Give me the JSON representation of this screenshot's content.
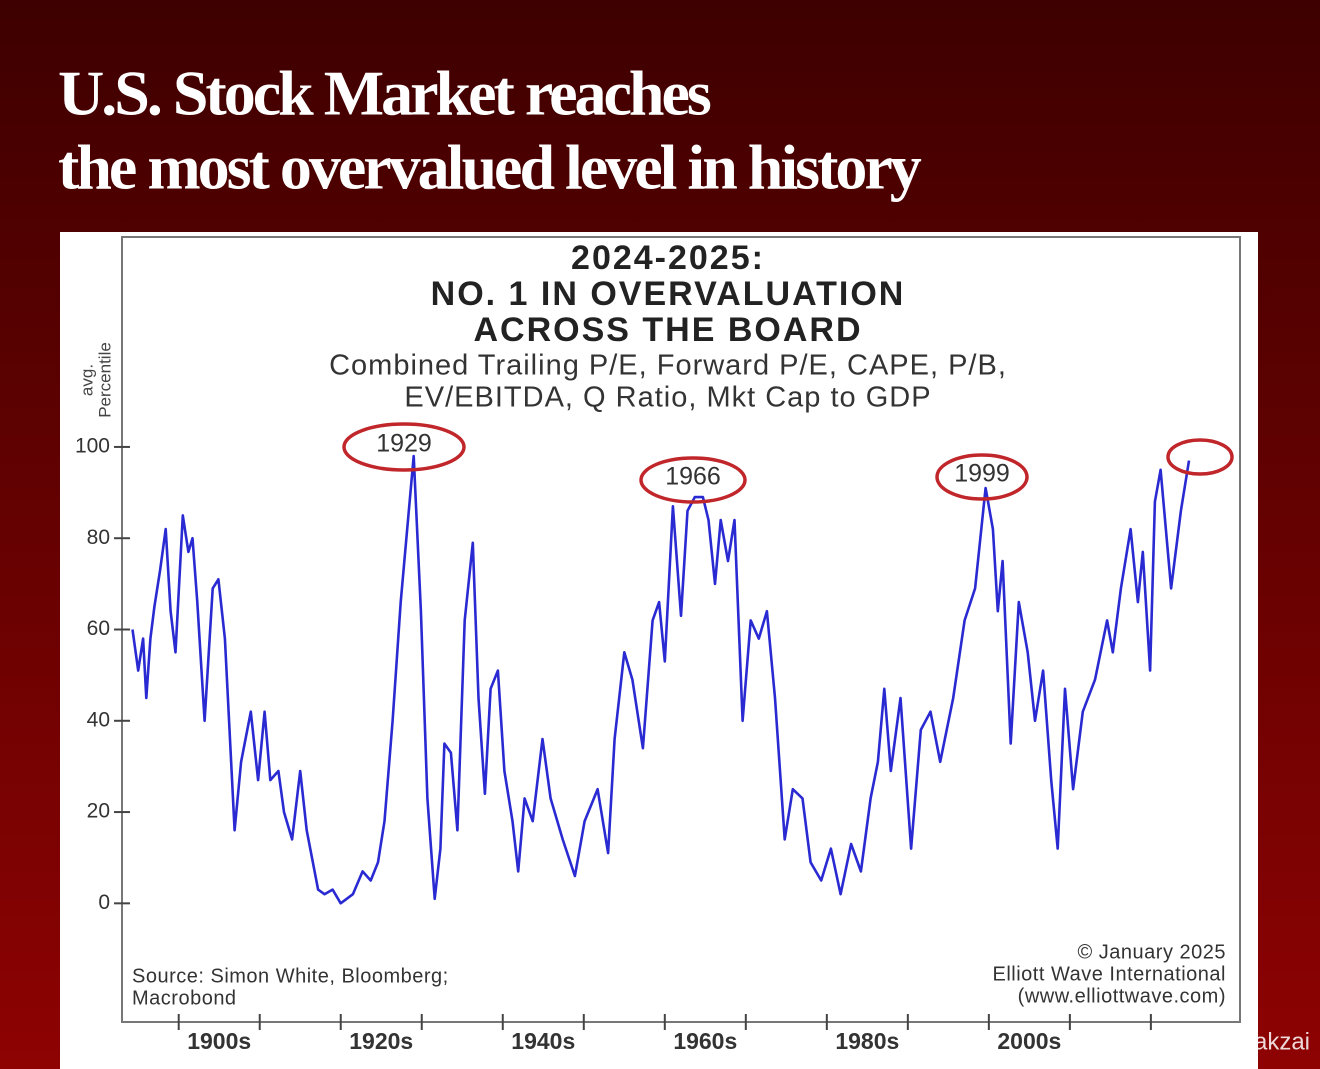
{
  "header": {
    "title": [
      "U.S. Stock Market reaches",
      "the most overvalued level in history"
    ]
  },
  "chart_data": {
    "type": "line",
    "title": [
      "2024-2025:",
      "NO. 1 IN OVERVALUATION",
      "ACROSS THE BOARD"
    ],
    "subtitle": [
      "Combined Trailing P/E, Forward P/E, CAPE, P/B,",
      "EV/EBITDA, Q Ratio, Mkt Cap to GDP"
    ],
    "y_label": [
      "avg.",
      "Percentile"
    ],
    "source": [
      "Source: Simon White, Bloomberg;",
      "Macrobond"
    ],
    "credit": [
      "© January 2025",
      "Elliott Wave International",
      "(www.elliottwave.com)"
    ],
    "annotations": [
      "1929",
      "1966",
      "1999"
    ],
    "xlim": [
      1893,
      2031
    ],
    "ylim": [
      -26,
      146
    ],
    "yticks": [
      0,
      20,
      40,
      60,
      80,
      100
    ],
    "xticks": [
      {
        "value": 1905,
        "label": "1900s"
      },
      {
        "value": 1925,
        "label": "1920s"
      },
      {
        "value": 1945,
        "label": "1940s"
      },
      {
        "value": 1965,
        "label": "1960s"
      },
      {
        "value": 1985,
        "label": "1980s"
      },
      {
        "value": 2005,
        "label": "2000s"
      }
    ],
    "x_tick_marks": [
      1900,
      1910,
      1920,
      1930,
      1940,
      1950,
      1960,
      1970,
      1980,
      1990,
      2000,
      2010,
      2020
    ],
    "series": [
      {
        "name": "avg. Percentile",
        "color": "#2a2ad2",
        "x": [
          1894.3,
          1895,
          1895.6,
          1896,
          1896.5,
          1897,
          1897.7,
          1898.4,
          1899,
          1899.6,
          1900.5,
          1901.2,
          1901.7,
          1902.3,
          1903.2,
          1904.2,
          1904.9,
          1905.7,
          1906.9,
          1907.7,
          1908.9,
          1909.8,
          1910.6,
          1911.3,
          1912.3,
          1913,
          1914,
          1915,
          1915.8,
          1917.2,
          1918,
          1919,
          1920,
          1921.5,
          1922.7,
          1923.7,
          1924.6,
          1925.4,
          1926.4,
          1927.4,
          1928.3,
          1929,
          1929.9,
          1930.7,
          1931.6,
          1932.3,
          1932.8,
          1933.6,
          1934.4,
          1935.3,
          1936.3,
          1937,
          1937.8,
          1938.5,
          1939.4,
          1940.2,
          1941.2,
          1941.9,
          1942.7,
          1943.7,
          1944.9,
          1945.9,
          1947.4,
          1948.9,
          1950.1,
          1951.7,
          1953,
          1953.8,
          1955,
          1956,
          1957.3,
          1958.5,
          1959.3,
          1960,
          1961,
          1962,
          1962.8,
          1963.7,
          1964.7,
          1965.4,
          1966.2,
          1966.9,
          1967.8,
          1968.6,
          1969.6,
          1970.6,
          1971.6,
          1972.6,
          1973.6,
          1974.8,
          1975.8,
          1977,
          1978,
          1979.3,
          1980.5,
          1981.7,
          1983,
          1984.2,
          1985.4,
          1986.3,
          1987.1,
          1987.9,
          1989.1,
          1990.4,
          1991.6,
          1992.8,
          1994,
          1995.6,
          1997,
          1998.3,
          1999.6,
          2000.5,
          2001.1,
          2001.7,
          2002.7,
          2003.7,
          2004.8,
          2005.7,
          2006.7,
          2007.7,
          2008.5,
          2009.4,
          2010.4,
          2011.6,
          2013.1,
          2014.6,
          2015.3,
          2016.3,
          2017.5,
          2018.4,
          2019,
          2019.9,
          2020.5,
          2021.2,
          2022.5,
          2023.7,
          2024.7
        ],
        "values": [
          60,
          51,
          58,
          45,
          58,
          65,
          73,
          82,
          64,
          55,
          85,
          77,
          80,
          66,
          40,
          69,
          71,
          58,
          16,
          31,
          42,
          27,
          42,
          27,
          29,
          20,
          14,
          29,
          16,
          3,
          2,
          3,
          0,
          2,
          7,
          5,
          9,
          18,
          40,
          66,
          84,
          98,
          64,
          23,
          1,
          12,
          35,
          33,
          16,
          62,
          79,
          45,
          24,
          47,
          51,
          29,
          18,
          7,
          23,
          18,
          36,
          23,
          14,
          6,
          18,
          25,
          11,
          36,
          55,
          49,
          34,
          62,
          66,
          53,
          87,
          63,
          86,
          89,
          89,
          84,
          70,
          84,
          75,
          84,
          40,
          62,
          58,
          64,
          45,
          14,
          25,
          23,
          9,
          5,
          12,
          2,
          13,
          7,
          23,
          31,
          47,
          29,
          45,
          12,
          38,
          42,
          31,
          45,
          62,
          69,
          91,
          82,
          64,
          75,
          35,
          66,
          55,
          40,
          51,
          27,
          12,
          47,
          25,
          42,
          49,
          62,
          55,
          69,
          82,
          66,
          77,
          51,
          88,
          95,
          69,
          86,
          97
        ]
      }
    ]
  },
  "watermark": "@ Junaid Orakzai"
}
